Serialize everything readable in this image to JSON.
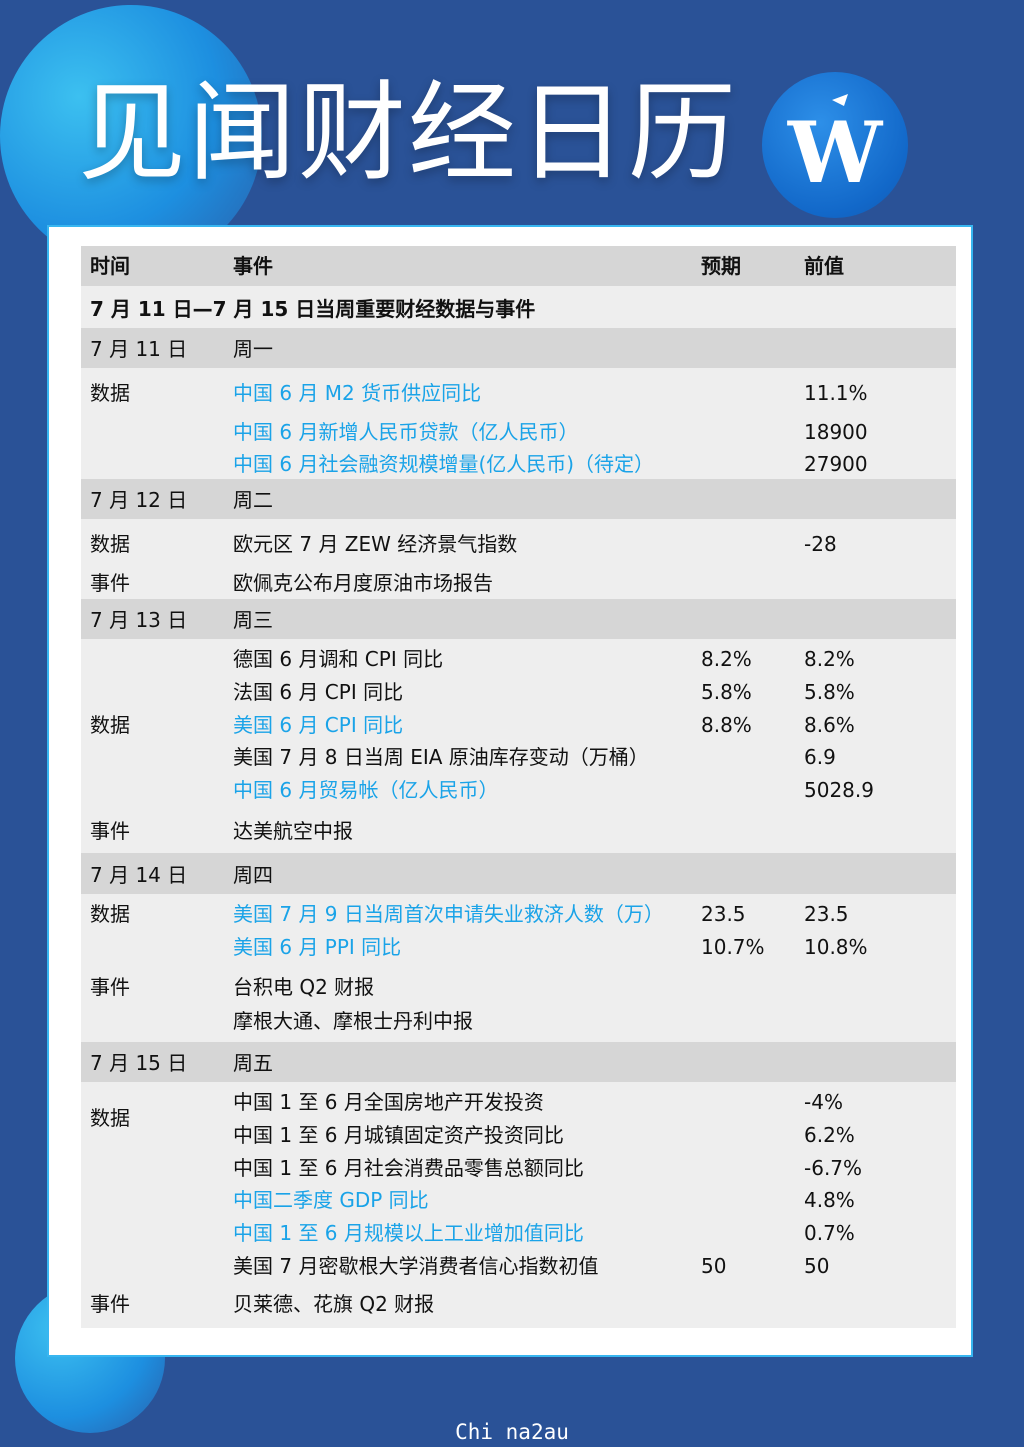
{
  "title": "见闻财经日历",
  "header": {
    "time": "时间",
    "event": "事件",
    "expected": "预期",
    "previous": "前值"
  },
  "week_title": "7 月 11 日—7 月 15 日当周重要财经数据与事件",
  "colors": {
    "link": "#1aa3e8",
    "band": "#d6d6d6",
    "bg": "#2a5297"
  },
  "days": [
    {
      "date": "7 月 11 日",
      "weekday": "周一",
      "rows": [
        {
          "cat": "数据",
          "event": "中国 6 月 M2 货币供应同比",
          "expected": "",
          "previous": "11.1%",
          "blue": true
        },
        {
          "cat": "",
          "event": "中国 6 月新增人民币贷款（亿人民币）",
          "expected": "",
          "previous": "18900",
          "blue": true
        },
        {
          "cat": "",
          "event": "中国 6 月社会融资规模增量(亿人民币)（待定）",
          "expected": "",
          "previous": "27900",
          "blue": true
        }
      ]
    },
    {
      "date": "7 月 12 日",
      "weekday": "周二",
      "rows": [
        {
          "cat": "数据",
          "event": "欧元区 7 月 ZEW 经济景气指数",
          "expected": "",
          "previous": "-28",
          "blue": false
        },
        {
          "cat": "事件",
          "event": "欧佩克公布月度原油市场报告",
          "expected": "",
          "previous": "",
          "blue": false
        }
      ]
    },
    {
      "date": "7 月 13 日",
      "weekday": "周三",
      "rows": [
        {
          "cat": "",
          "event": "德国 6 月调和 CPI 同比",
          "expected": "8.2%",
          "previous": "8.2%",
          "blue": false
        },
        {
          "cat": "",
          "event": "法国 6 月 CPI 同比",
          "expected": "5.8%",
          "previous": "5.8%",
          "blue": false
        },
        {
          "cat": "数据",
          "event": "美国 6 月 CPI 同比",
          "expected": "8.8%",
          "previous": "8.6%",
          "blue": true
        },
        {
          "cat": "",
          "event": "美国 7 月 8 日当周 EIA 原油库存变动（万桶）",
          "expected": "",
          "previous": "6.9",
          "blue": false
        },
        {
          "cat": "",
          "event": "中国 6 月贸易帐（亿人民币）",
          "expected": "",
          "previous": "5028.9",
          "blue": true
        },
        {
          "cat": "事件",
          "event": "达美航空中报",
          "expected": "",
          "previous": "",
          "blue": false
        }
      ]
    },
    {
      "date": "7 月 14 日",
      "weekday": "周四",
      "rows": [
        {
          "cat": "数据",
          "event": "美国 7 月 9 日当周首次申请失业救济人数（万）",
          "expected": "23.5",
          "previous": "23.5",
          "blue": true
        },
        {
          "cat": "",
          "event": "美国 6 月 PPI 同比",
          "expected": "10.7%",
          "previous": "10.8%",
          "blue": true
        },
        {
          "cat": "事件",
          "event": "台积电 Q2 财报",
          "expected": "",
          "previous": "",
          "blue": false
        },
        {
          "cat": "",
          "event": "摩根大通、摩根士丹利中报",
          "expected": "",
          "previous": "",
          "blue": false
        }
      ]
    },
    {
      "date": "7 月 15 日",
      "weekday": "周五",
      "rows": [
        {
          "cat": "数据",
          "event": "中国 1 至 6 月全国房地产开发投资",
          "expected": "",
          "previous": "-4%",
          "blue": false
        },
        {
          "cat": "",
          "event": "中国 1 至 6 月城镇固定资产投资同比",
          "expected": "",
          "previous": "6.2%",
          "blue": false
        },
        {
          "cat": "",
          "event": "中国 1 至 6 月社会消费品零售总额同比",
          "expected": "",
          "previous": "-6.7%",
          "blue": false
        },
        {
          "cat": "",
          "event": "中国二季度 GDP 同比",
          "expected": "",
          "previous": "4.8%",
          "blue": true
        },
        {
          "cat": "",
          "event": "中国 1 至 6 月规模以上工业增加值同比",
          "expected": "",
          "previous": "0.7%",
          "blue": true
        },
        {
          "cat": "",
          "event": "美国 7 月密歇根大学消费者信心指数初值",
          "expected": "50",
          "previous": "50",
          "blue": false
        },
        {
          "cat": "事件",
          "event": "贝莱德、花旗 Q2 财报",
          "expected": "",
          "previous": "",
          "blue": false
        }
      ]
    }
  ],
  "footer_watermark": "Chi na2au"
}
